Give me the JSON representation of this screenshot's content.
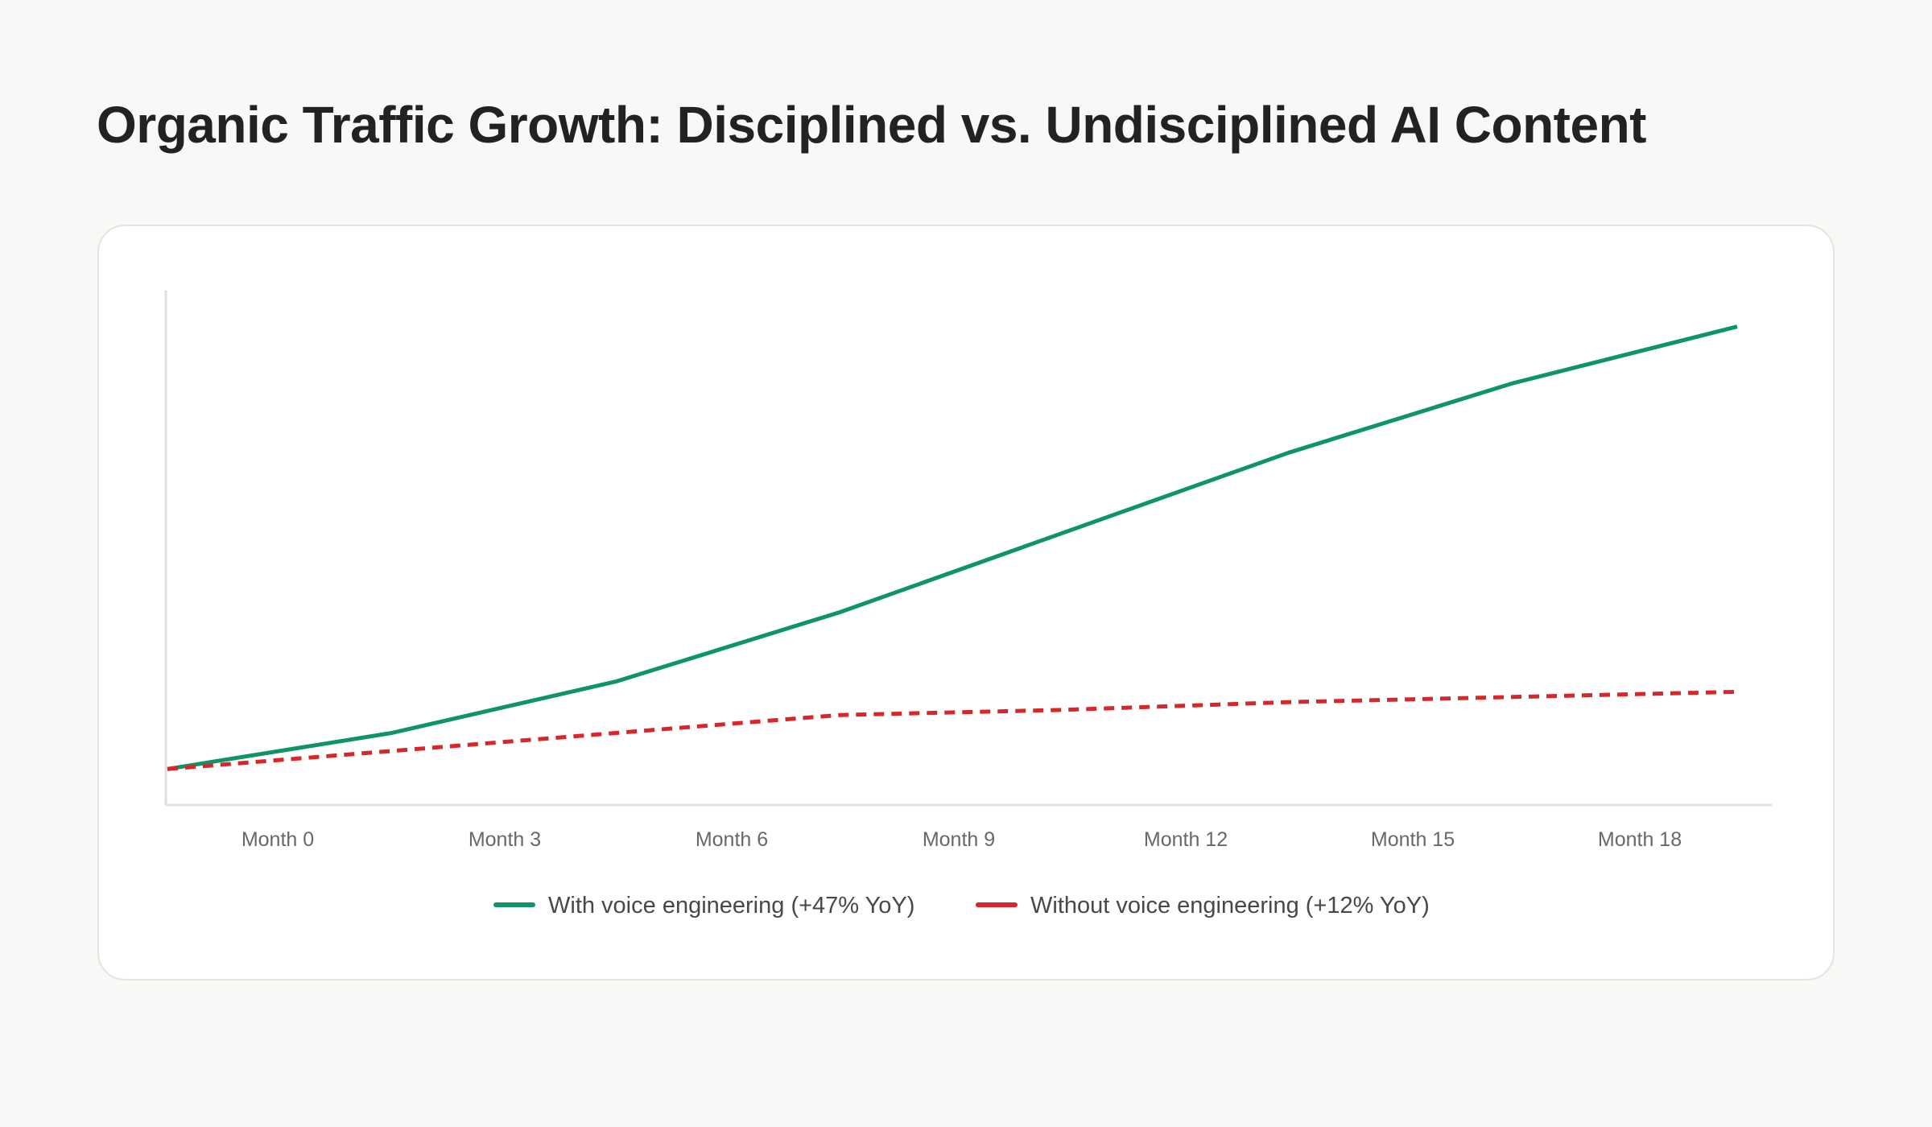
{
  "page": {
    "title": "Organic Traffic Growth: Disciplined vs. Undisciplined AI Content"
  },
  "chart_data": {
    "type": "line",
    "title": "Organic Traffic Growth: Disciplined vs. Undisciplined AI Content",
    "xlabel": "",
    "ylabel": "",
    "categories": [
      "Month 0",
      "Month 3",
      "Month 6",
      "Month 9",
      "Month 12",
      "Month 15",
      "Month 18"
    ],
    "x": [
      0,
      3,
      6,
      9,
      12,
      15,
      18,
      21
    ],
    "ylim": [
      0,
      100
    ],
    "grid": false,
    "legend_position": "bottom",
    "series": [
      {
        "name": "With voice engineering (+47% YoY)",
        "color": "#0f9467",
        "style": "solid",
        "values": [
          7,
          14,
          24,
          37.5,
          53,
          68.5,
          82,
          93
        ]
      },
      {
        "name": "Without voice engineering (+12% YoY)",
        "color": "#d9262b",
        "style": "dashed",
        "values": [
          7,
          10.5,
          14,
          17.5,
          18.5,
          20,
          21,
          22
        ]
      }
    ]
  }
}
